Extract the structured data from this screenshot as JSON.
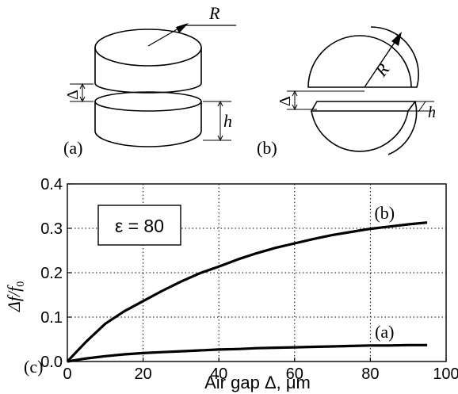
{
  "diagram_a": {
    "panel_label": "(a)",
    "radius_label": "R",
    "gap_label": "Δ",
    "height_label": "h"
  },
  "diagram_b": {
    "panel_label": "(b)",
    "radius_label": "R",
    "gap_label": "Δ",
    "height_label": "h"
  },
  "panel_c_label": "(c)",
  "chart_data": {
    "type": "line",
    "xlabel": "Air gap Δ, μm",
    "ylabel_main": "Δf/f",
    "ylabel_sub": "0",
    "xlim": [
      0,
      100
    ],
    "ylim": [
      0,
      0.4
    ],
    "x_ticks": [
      0,
      20,
      40,
      60,
      80,
      100
    ],
    "y_ticks": [
      0.0,
      0.1,
      0.2,
      0.3,
      0.4
    ],
    "x_tick_labels": [
      "0",
      "20",
      "40",
      "60",
      "80",
      "100"
    ],
    "y_tick_labels": [
      "0.0",
      "0.1",
      "0.2",
      "0.3",
      "0.4"
    ],
    "grid": true,
    "annotation": "ε = 80",
    "series": [
      {
        "name": "(b)",
        "color": "#000000",
        "x": [
          0,
          5,
          10,
          15,
          20,
          25,
          30,
          35,
          40,
          45,
          50,
          55,
          60,
          65,
          70,
          75,
          80,
          85,
          90,
          95
        ],
        "y": [
          0,
          0.045,
          0.085,
          0.113,
          0.136,
          0.159,
          0.18,
          0.199,
          0.214,
          0.23,
          0.244,
          0.256,
          0.266,
          0.276,
          0.285,
          0.292,
          0.299,
          0.304,
          0.309,
          0.313
        ]
      },
      {
        "name": "(a)",
        "color": "#000000",
        "x": [
          0,
          5,
          10,
          15,
          20,
          25,
          30,
          35,
          40,
          45,
          50,
          55,
          60,
          65,
          70,
          75,
          80,
          85,
          90,
          95
        ],
        "y": [
          0,
          0.007,
          0.012,
          0.016,
          0.019,
          0.021,
          0.023,
          0.025,
          0.027,
          0.028,
          0.03,
          0.031,
          0.032,
          0.033,
          0.034,
          0.035,
          0.036,
          0.036,
          0.037,
          0.037
        ]
      }
    ]
  }
}
